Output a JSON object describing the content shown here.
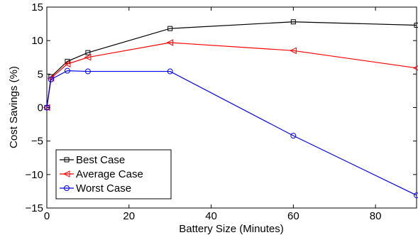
{
  "chart_data": {
    "type": "line",
    "title": "",
    "xlabel": "Battery Size (Minutes)",
    "ylabel": "Cost Savings (%)",
    "xlim": [
      0,
      90
    ],
    "ylim": [
      -15,
      15
    ],
    "x_ticks": [
      0,
      20,
      40,
      60,
      80
    ],
    "y_ticks": [
      -15,
      -10,
      -5,
      0,
      5,
      10,
      15
    ],
    "grid": false,
    "legend_position": "bottom-left",
    "series": [
      {
        "name": "Best Case",
        "color": "#000000",
        "marker": "square",
        "x": [
          0,
          1,
          5,
          10,
          30,
          60,
          90
        ],
        "y": [
          0,
          4.6,
          6.9,
          8.2,
          11.8,
          12.8,
          12.3
        ]
      },
      {
        "name": "Average Case",
        "color": "#ff0000",
        "marker": "triangle-left",
        "x": [
          0,
          1,
          5,
          10,
          30,
          60,
          90
        ],
        "y": [
          0,
          4.4,
          6.5,
          7.5,
          9.7,
          8.5,
          5.9
        ]
      },
      {
        "name": "Worst Case",
        "color": "#0000ff",
        "marker": "circle",
        "x": [
          0,
          1,
          5,
          10,
          30,
          60,
          90
        ],
        "y": [
          0,
          4.2,
          5.5,
          5.4,
          5.4,
          -4.2,
          -13.1
        ]
      }
    ]
  }
}
